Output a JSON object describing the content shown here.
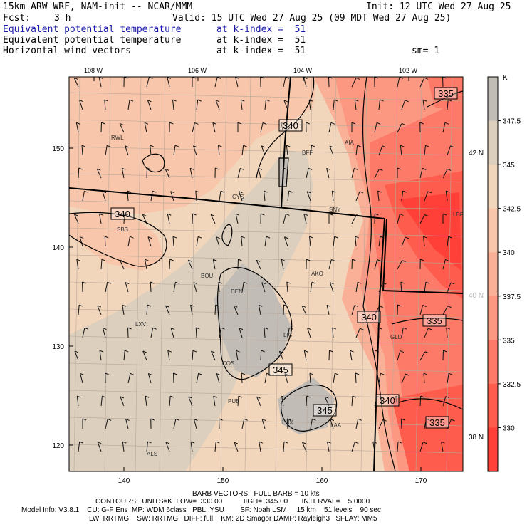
{
  "header": {
    "line1_left": "15km ARW WRF, NAM-init -- NCAR/MMM",
    "line1_right": "Init: 12 UTC Wed 27 Aug 25",
    "fcst_label": "Fcst:",
    "fcst_value": "3 h",
    "valid": "Valid: 15 UTC Wed 27 Aug 25 (09 MDT Wed 27 Aug 25)",
    "fields": [
      {
        "name": "Equivalent potential temperature",
        "level": "at k-index =  51",
        "color": "#1a1aa8"
      },
      {
        "name": "Equivalent potential temperature",
        "level": "at k-index =  51",
        "color": "#000000"
      },
      {
        "name": "Horizontal wind vectors",
        "level": "at k-index =  51",
        "color": "#000000"
      }
    ],
    "smoothing": "sm= 1"
  },
  "map": {
    "top_lon_labels": [
      "108 W",
      "106 W",
      "104 W",
      "102 W"
    ],
    "left_grid_labels": [
      "150",
      "140",
      "130",
      "120"
    ],
    "bottom_grid_labels": [
      "140",
      "150",
      "160",
      "170"
    ],
    "right_lat_labels": [
      "42 N",
      "40 N",
      "38 N"
    ],
    "cities": [
      "RWL",
      "BFF",
      "AIA",
      "CYS",
      "SNY",
      "SBS",
      "BOU",
      "AKO",
      "DEN",
      "LIC",
      "LXV",
      "COS",
      "GLD",
      "PUB",
      "LHX",
      "LAA",
      "ALS",
      "LBF"
    ],
    "contour_labels": [
      "340",
      "340",
      "340",
      "340",
      "345",
      "345",
      "335",
      "335",
      "335"
    ]
  },
  "colorbar": {
    "unit": "K",
    "ticks": [
      "347.5",
      "345",
      "342.5",
      "340",
      "337.5",
      "335",
      "332.5",
      "330"
    ],
    "colors": [
      "#c2bcb6",
      "#dccfbe",
      "#f2d6bc",
      "#f8c6aa",
      "#fab096",
      "#fc9882",
      "#fd7a68",
      "#fe5c4c",
      "#ff4038"
    ]
  },
  "footer": {
    "barb": "BARB VECTORS:  FULL BARB = 10 kts",
    "contours": "CONTOURS:  UNITS=K  LOW=  330.00         HIGH=  345.00       INTERVAL=    5.0000",
    "model_line1": "Model Info: V3.8.1    CU: G-F Ens  MP: WDM 6class   PBL: YSU        SF: Noah LSM     15 km    51 levels    90 sec",
    "model_line2": "LW: RRTMG    SW: RRTMG   DIFF: full    KM: 2D Smagor DAMP: Rayleigh3   SFLAY: MM5"
  }
}
